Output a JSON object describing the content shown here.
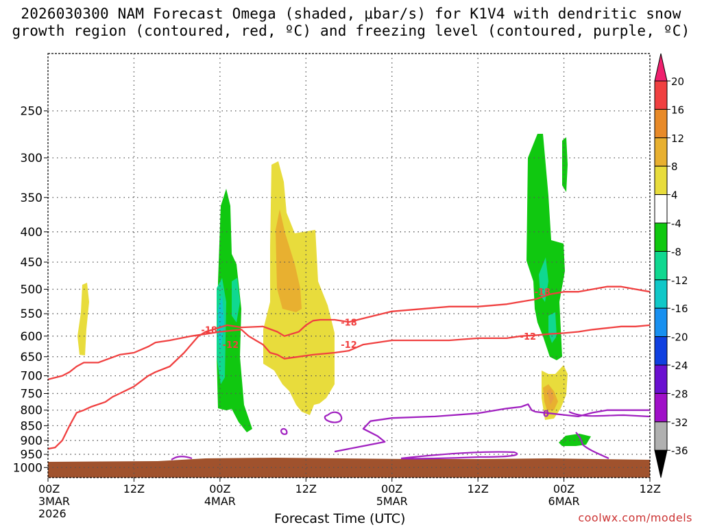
{
  "chart_data": {
    "type": "heatmap",
    "title_line1": "2026030300 NAM Forecast Omega (shaded, μbar/s) for K1V4 with dendritic snow",
    "title_line2": "growth region (contoured, red, ºC) and freezing level (contoured, purple, ºC)",
    "xlabel": "Forecast Time (UTC)",
    "ylabel": "",
    "y_ticks": [
      250,
      300,
      350,
      400,
      450,
      500,
      550,
      600,
      650,
      700,
      750,
      800,
      850,
      900,
      950,
      1000
    ],
    "x_ticks": [
      {
        "hour": 0,
        "label": "00Z",
        "sub1": "3MAR",
        "sub2": "2026"
      },
      {
        "hour": 12,
        "label": "12Z",
        "sub1": "",
        "sub2": ""
      },
      {
        "hour": 24,
        "label": "00Z",
        "sub1": "4MAR",
        "sub2": ""
      },
      {
        "hour": 36,
        "label": "12Z",
        "sub1": "",
        "sub2": ""
      },
      {
        "hour": 48,
        "label": "00Z",
        "sub1": "5MAR",
        "sub2": ""
      },
      {
        "hour": 60,
        "label": "12Z",
        "sub1": "",
        "sub2": ""
      },
      {
        "hour": 72,
        "label": "00Z",
        "sub1": "6MAR",
        "sub2": ""
      },
      {
        "hour": 84,
        "label": "12Z",
        "sub1": "",
        "sub2": ""
      }
    ],
    "xlim_hours": [
      0,
      84
    ],
    "ylim_hpa": [
      200,
      1040
    ],
    "colorbar": {
      "labels": [
        "20",
        "16",
        "12",
        "8",
        "4",
        "-4",
        "-8",
        "-12",
        "-16",
        "-20",
        "-24",
        "-28",
        "-32",
        "-36"
      ],
      "colors": [
        "#f0206e",
        "#f04040",
        "#e88a28",
        "#e8b030",
        "#e8dc3c",
        "#ffffff",
        "#10c810",
        "#10d890",
        "#10c8c8",
        "#1890f0",
        "#1040e0",
        "#6a10d0",
        "#a010c8",
        "#b0b0b0",
        "#000000"
      ]
    },
    "contours": [
      {
        "name": "-18",
        "type": "dendritic",
        "color": "#f04040",
        "points": [
          [
            0,
            930
          ],
          [
            1,
            925
          ],
          [
            2,
            900
          ],
          [
            3,
            850
          ],
          [
            4,
            808
          ],
          [
            5,
            800
          ],
          [
            6,
            790
          ],
          [
            8,
            775
          ],
          [
            9,
            760
          ],
          [
            10,
            750
          ],
          [
            12,
            730
          ],
          [
            14,
            700
          ],
          [
            15,
            690
          ],
          [
            17,
            675
          ],
          [
            19,
            640
          ],
          [
            21,
            600
          ],
          [
            22,
            590
          ],
          [
            23,
            585
          ],
          [
            25,
            575
          ],
          [
            27,
            580
          ],
          [
            30,
            578
          ],
          [
            32,
            590
          ],
          [
            33,
            600
          ],
          [
            35,
            590
          ],
          [
            36,
            575
          ],
          [
            37,
            565
          ],
          [
            38,
            563
          ],
          [
            40,
            563
          ],
          [
            42,
            568
          ],
          [
            44,
            560
          ],
          [
            48,
            545
          ],
          [
            52,
            540
          ],
          [
            56,
            535
          ],
          [
            60,
            535
          ],
          [
            64,
            530
          ],
          [
            68,
            520
          ],
          [
            70,
            510
          ],
          [
            72,
            505
          ],
          [
            74,
            505
          ],
          [
            76,
            500
          ],
          [
            78,
            495
          ],
          [
            80,
            495
          ],
          [
            82,
            500
          ],
          [
            84,
            505
          ]
        ],
        "labels": [
          [
            22.5,
            585
          ],
          [
            42,
            568
          ],
          [
            69,
            505
          ]
        ]
      },
      {
        "name": "-12",
        "type": "dendritic",
        "color": "#f04040",
        "points": [
          [
            0,
            710
          ],
          [
            2,
            700
          ],
          [
            3,
            690
          ],
          [
            4,
            675
          ],
          [
            5,
            665
          ],
          [
            7,
            665
          ],
          [
            10,
            645
          ],
          [
            12,
            640
          ],
          [
            14,
            625
          ],
          [
            15,
            615
          ],
          [
            17,
            610
          ],
          [
            20,
            600
          ],
          [
            22,
            595
          ],
          [
            24,
            590
          ],
          [
            27,
            585
          ],
          [
            28,
            600
          ],
          [
            29,
            610
          ],
          [
            30,
            620
          ],
          [
            31,
            640
          ],
          [
            32,
            645
          ],
          [
            33,
            655
          ],
          [
            35,
            650
          ],
          [
            37,
            645
          ],
          [
            40,
            640
          ],
          [
            42,
            635
          ],
          [
            44,
            620
          ],
          [
            48,
            610
          ],
          [
            52,
            610
          ],
          [
            56,
            610
          ],
          [
            60,
            605
          ],
          [
            64,
            605
          ],
          [
            66,
            600
          ],
          [
            68,
            598
          ],
          [
            70,
            595
          ],
          [
            72,
            593
          ],
          [
            74,
            590
          ],
          [
            76,
            585
          ],
          [
            80,
            578
          ],
          [
            82,
            578
          ],
          [
            84,
            575
          ]
        ],
        "labels": [
          [
            25.5,
            620
          ],
          [
            42,
            620
          ],
          [
            67,
            600
          ]
        ]
      },
      {
        "name": "0",
        "type": "freezing",
        "color": "#a020c0",
        "points": [
          [
            40,
            940
          ],
          [
            44,
            920
          ],
          [
            47,
            905
          ],
          [
            46,
            885
          ],
          [
            44,
            860
          ],
          [
            45,
            835
          ],
          [
            48,
            825
          ],
          [
            54,
            820
          ],
          [
            60,
            810
          ],
          [
            64,
            795
          ],
          [
            66,
            790
          ],
          [
            67,
            782
          ],
          [
            67.5,
            800
          ],
          [
            68,
            805
          ],
          [
            70,
            810
          ],
          [
            72,
            815
          ],
          [
            74,
            820
          ],
          [
            76,
            808
          ],
          [
            78,
            800
          ],
          [
            80,
            800
          ],
          [
            82,
            800
          ],
          [
            84,
            800
          ]
        ],
        "labels": [
          [
            69.5,
            810
          ]
        ]
      }
    ],
    "values_note": "Omega shading in μbar/s: negative (rising motion) green/teal/blue; positive (sinking) yellow/orange; brown band is below-ground surface near 1000 hPa"
  }
}
